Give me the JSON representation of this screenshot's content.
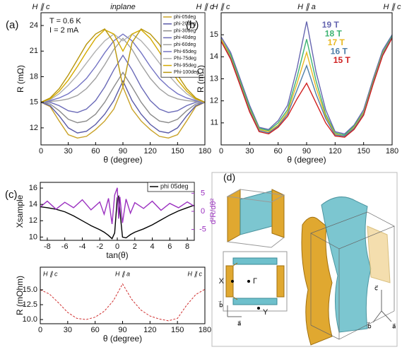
{
  "chart_data": [
    {
      "type": "line",
      "panel_label": "(a)",
      "top_labels": [
        "H ∥ c",
        "inplane",
        "H ∥ c"
      ],
      "annotations": [
        "T = 0.6 K",
        "I = 2 mA"
      ],
      "xlabel": "θ (degree)",
      "ylabel": "R (mΩ)",
      "x": [
        0,
        10,
        20,
        30,
        40,
        50,
        60,
        70,
        80,
        90,
        100,
        110,
        120,
        130,
        140,
        150,
        160,
        170,
        180
      ],
      "xlim": [
        0,
        180
      ],
      "xticks": [
        0,
        30,
        60,
        90,
        120,
        150,
        180
      ],
      "ylim": [
        10,
        25.5
      ],
      "yticks": [
        12,
        15,
        18,
        21,
        24
      ],
      "legend": "upper right",
      "series": [
        {
          "name": "phi-05deg",
          "color": "#c9a227",
          "values": [
            15,
            14.5,
            12.8,
            11.2,
            10.8,
            11.0,
            11.8,
            12.8,
            14.2,
            16.8,
            14.2,
            12.8,
            11.8,
            11.0,
            10.8,
            11.2,
            12.8,
            14.5,
            15
          ]
        },
        {
          "name": "phi-20deg",
          "color": "#5b5ba8",
          "values": [
            15,
            14.6,
            13.4,
            12.0,
            11.4,
            11.6,
            12.4,
            13.6,
            15.2,
            17.5,
            15.2,
            13.6,
            12.4,
            11.6,
            11.4,
            12.0,
            13.4,
            14.6,
            15
          ]
        },
        {
          "name": "phi-30deg",
          "color": "#8c8c8c",
          "values": [
            15,
            14.8,
            14.0,
            13.0,
            12.6,
            12.8,
            13.6,
            15.0,
            16.8,
            18.5,
            16.8,
            15.0,
            13.6,
            12.8,
            12.6,
            13.0,
            14.0,
            14.8,
            15
          ]
        },
        {
          "name": "phi-40deg",
          "color": "#6a6ab8",
          "values": [
            15,
            15.0,
            14.6,
            14.0,
            13.8,
            14.2,
            15.2,
            16.8,
            18.8,
            20.5,
            18.8,
            16.8,
            15.2,
            14.2,
            13.8,
            14.0,
            14.6,
            15.0,
            15
          ]
        },
        {
          "name": "phi-60deg",
          "color": "#a0a0a0",
          "values": [
            15,
            15.1,
            15.2,
            15.4,
            15.8,
            16.6,
            17.8,
            19.4,
            21.2,
            22.5,
            21.2,
            19.4,
            17.8,
            16.6,
            15.8,
            15.4,
            15.2,
            15.1,
            15
          ]
        },
        {
          "name": "Phi-65deg",
          "color": "#7474c4",
          "values": [
            15,
            15.2,
            15.5,
            16.0,
            16.8,
            17.8,
            19.2,
            20.8,
            22.2,
            23.0,
            22.2,
            20.8,
            19.2,
            17.8,
            16.8,
            16.0,
            15.5,
            15.2,
            15
          ]
        },
        {
          "name": "Phi-75deg",
          "color": "#b0b0b0",
          "values": [
            15,
            15.3,
            16.0,
            17.0,
            18.2,
            19.6,
            21.0,
            22.2,
            23.0,
            22.2,
            23.0,
            22.2,
            21.0,
            19.6,
            18.2,
            17.0,
            16.0,
            15.3,
            15
          ]
        },
        {
          "name": "Phi-95deg",
          "color": "#d4aa00",
          "values": [
            15,
            15.4,
            16.3,
            17.6,
            19.2,
            20.9,
            22.5,
            23.5,
            23.0,
            21.0,
            23.0,
            23.5,
            22.5,
            20.9,
            19.2,
            17.6,
            16.3,
            15.4,
            15
          ]
        },
        {
          "name": "Phi-100deg",
          "color": "#b8960c",
          "values": [
            15,
            15.5,
            16.6,
            18.2,
            20.0,
            21.8,
            23.0,
            23.6,
            22.0,
            16.8,
            22.0,
            23.6,
            23.0,
            21.8,
            20.0,
            18.2,
            16.6,
            15.5,
            15
          ]
        }
      ]
    },
    {
      "type": "line",
      "panel_label": "(b)",
      "top_labels": [
        "H ∥ c",
        "H ∥ a",
        "H ∥ c"
      ],
      "xlabel": "θ (degree)",
      "ylabel": "R (mΩ)",
      "x": [
        0,
        10,
        20,
        30,
        40,
        50,
        60,
        70,
        80,
        90,
        100,
        110,
        120,
        130,
        140,
        150,
        160,
        170,
        180
      ],
      "xlim": [
        0,
        180
      ],
      "xticks": [
        0,
        30,
        60,
        90,
        120,
        150,
        180
      ],
      "ylim": [
        10,
        16
      ],
      "yticks": [
        11,
        12,
        13,
        14,
        15
      ],
      "legend": "upper center",
      "series": [
        {
          "name": "19 T",
          "color": "#6666b0",
          "values": [
            14.9,
            14.2,
            13.0,
            11.8,
            10.8,
            10.7,
            11.1,
            11.8,
            13.5,
            15.6,
            13.3,
            11.6,
            10.6,
            10.5,
            10.9,
            11.6,
            13.0,
            14.3,
            15.0
          ]
        },
        {
          "name": "18 T",
          "color": "#3cb371",
          "values": [
            14.8,
            14.1,
            12.9,
            11.7,
            10.75,
            10.65,
            11.0,
            11.6,
            13.1,
            14.8,
            12.9,
            11.4,
            10.55,
            10.45,
            10.85,
            11.5,
            12.9,
            14.2,
            14.95
          ]
        },
        {
          "name": "17 T",
          "color": "#e8b820",
          "values": [
            14.8,
            14.0,
            12.8,
            11.6,
            10.7,
            10.6,
            10.9,
            11.5,
            12.8,
            14.2,
            12.6,
            11.3,
            10.5,
            10.4,
            10.8,
            11.45,
            12.85,
            14.15,
            14.9
          ]
        },
        {
          "name": "16 T",
          "color": "#4f7fa8",
          "values": [
            14.7,
            13.95,
            12.75,
            11.55,
            10.65,
            10.55,
            10.85,
            11.4,
            12.5,
            13.6,
            12.3,
            11.2,
            10.45,
            10.4,
            10.75,
            11.4,
            12.8,
            14.1,
            14.9
          ]
        },
        {
          "name": "15 T",
          "color": "#d02020",
          "values": [
            14.7,
            13.9,
            12.7,
            11.5,
            10.6,
            10.5,
            10.8,
            11.3,
            12.1,
            12.8,
            11.9,
            11.0,
            10.4,
            10.35,
            10.7,
            11.35,
            12.75,
            14.05,
            14.85
          ]
        }
      ]
    },
    {
      "type": "line",
      "panel_label": "(c)",
      "xlabel": "tan(θ)",
      "ylabel": "Xsample",
      "y2label": "d²R/dθ²",
      "x": [
        -8.8,
        -8,
        -7,
        -6,
        -5,
        -4,
        -3,
        -2,
        -1.5,
        -1,
        -0.6,
        -0.3,
        0,
        0.15,
        0.3,
        0.6,
        1,
        1.5,
        2,
        3,
        4,
        5,
        6,
        7,
        8,
        8.8
      ],
      "xlim": [
        -8.8,
        8.8
      ],
      "xticks": [
        -8,
        -6,
        -4,
        -2,
        0,
        2,
        4,
        6,
        8
      ],
      "ylim": [
        9.6,
        16.7
      ],
      "yticks": [
        10,
        12,
        14,
        16
      ],
      "y2lim": [
        -8,
        8
      ],
      "y2ticks": [
        -5,
        0,
        5
      ],
      "legend": "upper right",
      "series": [
        {
          "name": "phi 05deg",
          "color": "#000000",
          "values": [
            13.7,
            13.6,
            13.4,
            13.1,
            12.6,
            12.0,
            11.4,
            10.9,
            10.6,
            10.2,
            9.8,
            10.5,
            14.8,
            15.0,
            13.2,
            10.0,
            9.9,
            10.3,
            10.6,
            11.0,
            11.5,
            12.1,
            12.7,
            13.2,
            13.6,
            13.9
          ]
        },
        {
          "color": "#9b30c0",
          "axis": "y2",
          "values": [
            1.2,
            2.8,
            0.6,
            2.5,
            1.0,
            3.2,
            0.4,
            2.6,
            -0.8,
            3.6,
            -3.5,
            4.5,
            6.5,
            -2,
            4.0,
            -3.2,
            3.4,
            -0.5,
            2.4,
            0.8,
            2.8,
            0.3,
            2.2,
            1.0,
            2.6,
            1.4
          ]
        }
      ]
    },
    {
      "type": "line",
      "top_labels": [
        "H ∥ c",
        "H ∥ a",
        "H ∥ c"
      ],
      "xlabel": "θ (degree)",
      "ylabel": "R (mOhm)",
      "x": [
        0,
        10,
        20,
        30,
        40,
        50,
        60,
        70,
        80,
        90,
        100,
        110,
        120,
        130,
        140,
        150,
        160,
        170,
        180
      ],
      "xlim": [
        0,
        180
      ],
      "xticks": [
        0,
        30,
        60,
        90,
        120,
        150,
        180
      ],
      "ylim": [
        9.3,
        18.8
      ],
      "yticks": [
        {
          "value": 10,
          "label": "10.0"
        },
        12.5,
        {
          "value": 15,
          "label": "15.0"
        }
      ],
      "series": [
        {
          "color": "#d03030",
          "dashed": true,
          "values": [
            15.0,
            14.3,
            12.8,
            11.2,
            10.2,
            10.0,
            10.4,
            11.4,
            13.2,
            16.0,
            13.4,
            11.6,
            10.6,
            10.1,
            9.8,
            10.2,
            12.4,
            14.2,
            15.1
          ]
        }
      ]
    }
  ],
  "panel_d": {
    "label": "(d)",
    "points": [
      "X",
      "Γ",
      "Y"
    ],
    "small_axes": [
      "b⃗",
      "a⃗"
    ],
    "large_axes": [
      "c⃗",
      "a⃗",
      "b⃗"
    ]
  }
}
